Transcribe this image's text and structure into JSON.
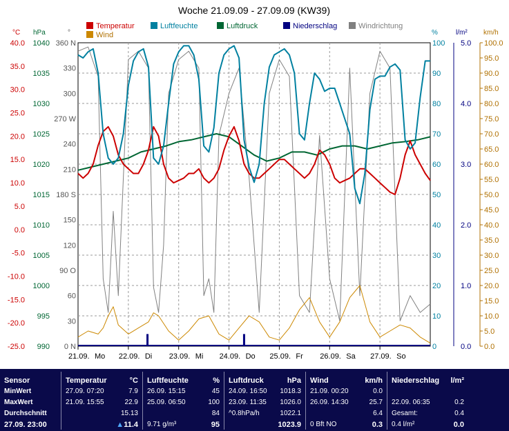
{
  "chart_data": {
    "type": "line",
    "title": "Woche 21.09.09 - 27.09.09 (KW39)",
    "x_categories": [
      "21.09.",
      "22.09.",
      "23.09.",
      "24.09.",
      "25.09.",
      "26.09.",
      "27.09."
    ],
    "x_weekdays": [
      "Mo",
      "Di",
      "Mi",
      "Do",
      "Fr",
      "Sa",
      "So"
    ],
    "axes": {
      "temperature": {
        "unit": "°C",
        "min": -25,
        "max": 40,
        "step": 5,
        "color": "#cc0000"
      },
      "pressure": {
        "unit": "hPa",
        "min": 990,
        "max": 1040,
        "step": 5,
        "color": "#006633"
      },
      "wind_direction": {
        "unit": "°",
        "ticks": [
          "0 N",
          "30",
          "60",
          "90 O",
          "120",
          "150",
          "180 S",
          "210",
          "240",
          "270 W",
          "300",
          "330",
          "360 N"
        ]
      },
      "humidity": {
        "unit": "%",
        "min": 0,
        "max": 100,
        "step": 10,
        "color": "#0080a0"
      },
      "precipitation": {
        "unit": "l/m²",
        "min": 0,
        "max": 5,
        "ticks": [
          "0.0",
          "1.0",
          "2.0",
          "3.0",
          "4.0",
          "5.0"
        ],
        "color": "#000080"
      },
      "wind": {
        "unit": "km/h",
        "min": 0,
        "max": 100,
        "step": 5,
        "color": "#b07000"
      }
    },
    "legend": [
      "Temperatur",
      "Luftfeuchte",
      "Luftdruck",
      "Niederschlag",
      "Windrichtung",
      "Wind"
    ],
    "series": [
      {
        "name": "Temperatur",
        "axis": "temperature",
        "color": "#cc0000",
        "days": [
          0,
          0.1,
          0.2,
          0.3,
          0.4,
          0.5,
          0.6,
          0.7,
          0.8,
          0.9,
          1,
          1.1,
          1.2,
          1.3,
          1.4,
          1.5,
          1.6,
          1.7,
          1.8,
          1.9,
          2,
          2.1,
          2.2,
          2.3,
          2.4,
          2.5,
          2.6,
          2.7,
          2.8,
          2.9,
          3,
          3.1,
          3.2,
          3.3,
          3.4,
          3.5,
          3.6,
          3.7,
          3.8,
          3.9,
          4,
          4.1,
          4.2,
          4.3,
          4.4,
          4.5,
          4.6,
          4.7,
          4.8,
          4.9,
          5,
          5.1,
          5.2,
          5.3,
          5.4,
          5.5,
          5.6,
          5.7,
          5.8,
          5.9,
          6,
          6.1,
          6.2,
          6.3,
          6.4,
          6.5,
          6.6,
          6.7,
          6.8,
          6.9,
          7
        ],
        "values": [
          12,
          11,
          12,
          14,
          18,
          21,
          22,
          20,
          16,
          14,
          13,
          12,
          12,
          14,
          17,
          22,
          20,
          14,
          11,
          10,
          10.5,
          11,
          12,
          12,
          13,
          11,
          10,
          11,
          13,
          17,
          20,
          22,
          19,
          14,
          12,
          11,
          11,
          12,
          13,
          14,
          15,
          15,
          14,
          13,
          12,
          11,
          12,
          14,
          17,
          16,
          14,
          11,
          10,
          10.5,
          11,
          12,
          13,
          13,
          12,
          11,
          10,
          9,
          8,
          7.5,
          11,
          16,
          19,
          16,
          14,
          12,
          10.5
        ]
      },
      {
        "name": "Luftfeuchte",
        "axis": "humidity",
        "color": "#0080a0",
        "days": [
          0,
          0.1,
          0.2,
          0.3,
          0.4,
          0.5,
          0.6,
          0.7,
          0.8,
          0.9,
          1,
          1.1,
          1.2,
          1.3,
          1.4,
          1.5,
          1.6,
          1.7,
          1.8,
          1.9,
          2,
          2.1,
          2.2,
          2.3,
          2.4,
          2.5,
          2.6,
          2.7,
          2.8,
          2.9,
          3,
          3.1,
          3.2,
          3.3,
          3.4,
          3.5,
          3.6,
          3.7,
          3.8,
          3.9,
          4,
          4.1,
          4.2,
          4.3,
          4.4,
          4.5,
          4.6,
          4.7,
          4.8,
          4.9,
          5,
          5.1,
          5.2,
          5.3,
          5.4,
          5.5,
          5.6,
          5.7,
          5.8,
          5.9,
          6,
          6.1,
          6.2,
          6.3,
          6.4,
          6.5,
          6.6,
          6.7,
          6.8,
          6.9,
          7
        ],
        "values": [
          96,
          95,
          97,
          98,
          90,
          70,
          62,
          60,
          62,
          70,
          86,
          94,
          97,
          98,
          92,
          62,
          60,
          66,
          80,
          93,
          97,
          99,
          99,
          96,
          88,
          66,
          64,
          72,
          90,
          96,
          98,
          99,
          95,
          68,
          59,
          54,
          60,
          80,
          92,
          96,
          97,
          98,
          96,
          90,
          70,
          68,
          80,
          90,
          88,
          84,
          85,
          85,
          80,
          75,
          70,
          52,
          47,
          57,
          78,
          88,
          89,
          89,
          92,
          93,
          91,
          68,
          65,
          67,
          82,
          94,
          94
        ]
      },
      {
        "name": "Luftdruck",
        "axis": "pressure",
        "color": "#006633",
        "days": [
          0,
          0.25,
          0.5,
          0.75,
          1,
          1.25,
          1.5,
          1.75,
          2,
          2.25,
          2.5,
          2.75,
          3,
          3.25,
          3.5,
          3.75,
          4,
          4.25,
          4.5,
          4.75,
          5,
          5.25,
          5.5,
          5.75,
          6,
          6.25,
          6.5,
          6.75,
          7
        ],
        "values": [
          1019,
          1019.5,
          1020,
          1020.5,
          1021,
          1022,
          1022.5,
          1023,
          1023.7,
          1024,
          1024.5,
          1025,
          1024.5,
          1023,
          1021.5,
          1020.5,
          1021,
          1022,
          1022,
          1021.5,
          1022.5,
          1023,
          1023,
          1022.5,
          1023,
          1023.5,
          1023.7,
          1024,
          1024.5
        ]
      },
      {
        "name": "Windrichtung",
        "axis": "wind_direction",
        "color": "#808080",
        "days": [
          0,
          0.2,
          0.4,
          0.5,
          0.6,
          0.7,
          0.8,
          0.9,
          1,
          1.2,
          1.4,
          1.5,
          1.6,
          1.7,
          1.8,
          2,
          2.2,
          2.4,
          2.5,
          2.6,
          2.7,
          2.8,
          3,
          3.2,
          3.4,
          3.6,
          3.8,
          4,
          4.2,
          4.4,
          4.6,
          4.8,
          5,
          5.2,
          5.4,
          5.6,
          5.8,
          6,
          6.2,
          6.4,
          6.6,
          6.8,
          7
        ],
        "values": [
          350,
          355,
          320,
          80,
          40,
          160,
          60,
          200,
          340,
          350,
          330,
          70,
          40,
          120,
          300,
          340,
          350,
          330,
          60,
          80,
          40,
          250,
          300,
          330,
          200,
          40,
          300,
          340,
          320,
          60,
          40,
          250,
          80,
          30,
          330,
          60,
          300,
          350,
          330,
          30,
          60,
          40,
          50
        ]
      },
      {
        "name": "Wind",
        "axis": "wind",
        "color": "#cc8800",
        "days": [
          0,
          0.2,
          0.4,
          0.5,
          0.6,
          0.7,
          0.8,
          1,
          1.2,
          1.4,
          1.5,
          1.6,
          1.8,
          2,
          2.2,
          2.4,
          2.6,
          2.8,
          3,
          3.2,
          3.4,
          3.6,
          3.8,
          4,
          4.2,
          4.4,
          4.6,
          4.8,
          5,
          5.2,
          5.4,
          5.6,
          5.8,
          6,
          6.2,
          6.4,
          6.6,
          6.8,
          7
        ],
        "values": [
          3,
          5,
          4,
          6,
          10,
          13,
          7,
          4,
          6,
          8,
          11,
          10,
          5,
          2,
          5,
          9,
          10,
          4,
          2,
          6,
          10,
          8,
          3,
          2,
          6,
          12,
          16,
          8,
          3,
          8,
          16,
          20,
          8,
          3,
          5,
          7,
          6,
          3,
          1
        ]
      },
      {
        "name": "Niederschlag",
        "axis": "precipitation",
        "color": "#000080",
        "bars": [
          {
            "day": 1.38,
            "value": 0.2
          },
          {
            "day": 3.3,
            "value": 0.2
          }
        ]
      }
    ]
  },
  "stats": {
    "sensor": {
      "title": "Sensor",
      "min": "MinWert",
      "max": "MaxWert",
      "avg": "Durchschnitt",
      "current": "27.09. 23:00"
    },
    "temperature": {
      "title": "Temperatur",
      "unit": "°C",
      "min_time": "27.09.  07:20",
      "min_value": "7.9",
      "max_time": "21.09.  15:55",
      "max_value": "22.9",
      "avg": "15.13",
      "current": "11.4"
    },
    "humidity": {
      "title": "Luftfeuchte",
      "unit": "%",
      "min_time": "26.09.  15:15",
      "min_value": "45",
      "max_time": "25.09.  06:50",
      "max_value": "100",
      "avg": "84",
      "absolute": "9.71 g/m³",
      "current": "95"
    },
    "pressure": {
      "title": "Luftdruck",
      "unit": "hPa",
      "min_time": "24.09.  16:50",
      "min_value": "1018.3",
      "max_time": "23.09.  11:35",
      "max_value": "1026.0",
      "trend": "^0.8hPa/h",
      "avg": "1022.1",
      "current": "1023.9"
    },
    "wind": {
      "title": "Wind",
      "unit": "km/h",
      "min_time": "21.09.  00:20",
      "min_value": "0.0",
      "max_time": "26.09.  14:30",
      "max_value": "25.7",
      "avg": "6.4",
      "current_dir": "0 Bft NO",
      "current": "0.3"
    },
    "precip": {
      "title": "Niederschlag",
      "unit": "l/m²",
      "max_time": "22.09.  06:35",
      "max_value": "0.2",
      "total_label": "Gesamt:",
      "total": "0.4",
      "rate": "0.4 l/m²",
      "current": "0.0"
    }
  }
}
